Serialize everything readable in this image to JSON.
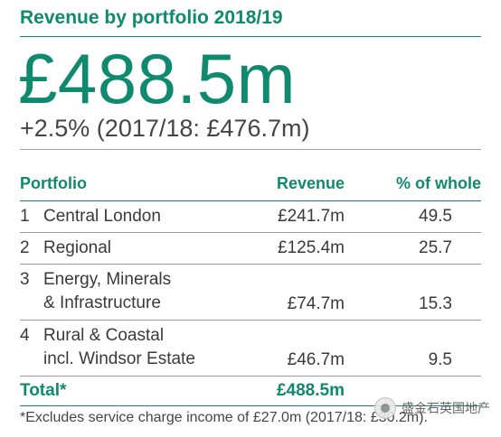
{
  "title": "Revenue by portfolio 2018/19",
  "headline_value": "£488.5m",
  "change_line": "+2.5% (2017/18: £476.7m)",
  "table": {
    "headers": {
      "portfolio": "Portfolio",
      "revenue": "Revenue",
      "pct": "% of whole"
    },
    "rows": [
      {
        "num": "1",
        "name_l1": "Central London",
        "name_l2": "",
        "revenue": "£241.7m",
        "pct": "49.5"
      },
      {
        "num": "2",
        "name_l1": "Regional",
        "name_l2": "",
        "revenue": "£125.4m",
        "pct": "25.7"
      },
      {
        "num": "3",
        "name_l1": "Energy, Minerals",
        "name_l2": "& Infrastructure",
        "revenue": "£74.7m",
        "pct": "15.3"
      },
      {
        "num": "4",
        "name_l1": "Rural & Coastal",
        "name_l2": "incl. Windsor Estate",
        "revenue": "£46.7m",
        "pct": "9.5"
      }
    ],
    "total": {
      "label": "Total*",
      "revenue": "£488.5m"
    }
  },
  "footnote": "*Excludes service charge income of £27.0m (2017/18: £30.2m).",
  "watermark": "盛金石英国地产",
  "colors": {
    "accent": "#0f8a6e",
    "text": "#3a3a3a"
  }
}
